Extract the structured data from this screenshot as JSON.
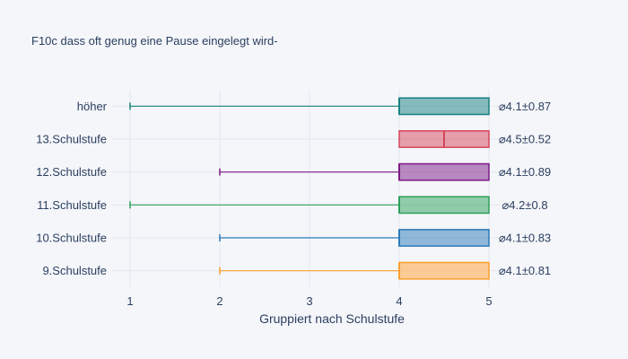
{
  "chart_data": {
    "type": "box",
    "orientation": "horizontal",
    "title": "F10c dass oft genug eine Pause eingelegt wird-",
    "xlabel": "Gruppiert nach Schulstufe",
    "xlim": [
      0.8,
      5.2
    ],
    "xticks": [
      1,
      2,
      3,
      4,
      5
    ],
    "grid": true,
    "legend": "none",
    "categories": [
      "9.Schulstufe",
      "10.Schulstufe",
      "11.Schulstufe",
      "12.Schulstufe",
      "13.Schulstufe",
      "höher"
    ],
    "series": [
      {
        "category": "9.Schulstufe",
        "min": 2,
        "q1": 4,
        "median": 4,
        "q3": 5,
        "max": 5,
        "color": "#ff9f2e",
        "annotation": "⌀4.1±0.81"
      },
      {
        "category": "10.Schulstufe",
        "min": 2,
        "q1": 4,
        "median": 4,
        "q3": 5,
        "max": 5,
        "color": "#2a7ab8",
        "annotation": "⌀4.1±0.83"
      },
      {
        "category": "11.Schulstufe",
        "min": 1,
        "q1": 4,
        "median": 4,
        "q3": 5,
        "max": 5,
        "color": "#2ca05a",
        "annotation": "⌀4.2±0.8"
      },
      {
        "category": "12.Schulstufe",
        "min": 2,
        "q1": 4,
        "median": 4,
        "q3": 5,
        "max": 5,
        "color": "#7b1a86",
        "annotation": "⌀4.1±0.89"
      },
      {
        "category": "13.Schulstufe",
        "min": 4,
        "q1": 4,
        "median": 4.5,
        "q3": 5,
        "max": 5,
        "color": "#d6455a",
        "annotation": "⌀4.5±0.52"
      },
      {
        "category": "höher",
        "min": 1,
        "q1": 4,
        "median": 4,
        "q3": 5,
        "max": 5,
        "color": "#168080",
        "annotation": "⌀4.1±0.87"
      }
    ]
  }
}
